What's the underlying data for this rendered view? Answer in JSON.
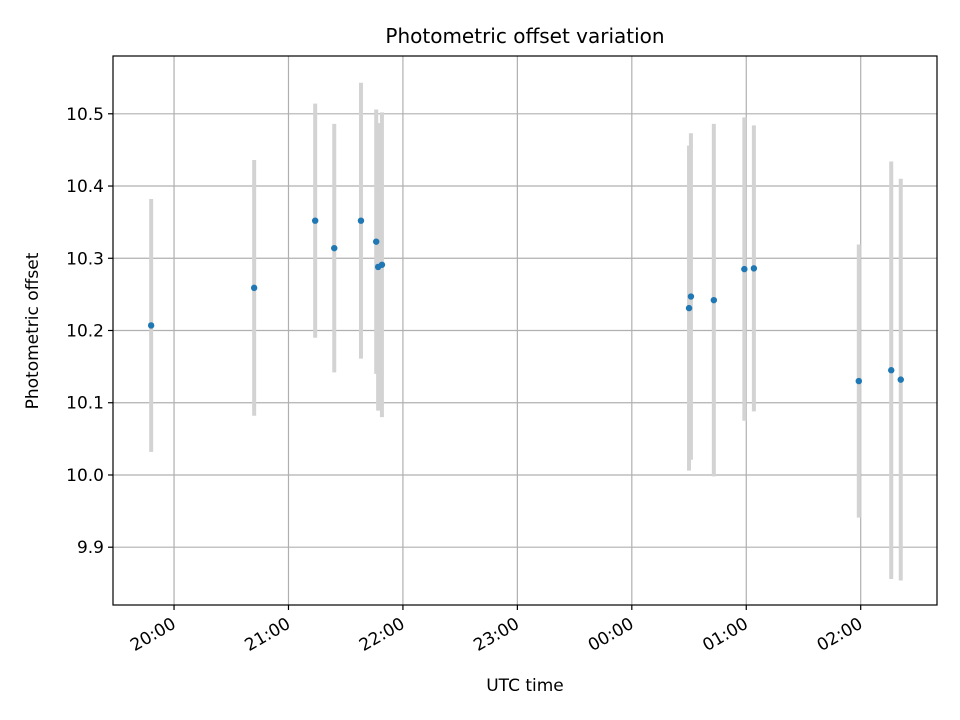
{
  "chart_data": {
    "type": "scatter",
    "title": "Photometric offset variation",
    "xlabel": "UTC time",
    "ylabel": "Photometric offset",
    "x_ticks": [
      "20:00",
      "21:00",
      "22:00",
      "23:00",
      "00:00",
      "01:00",
      "02:00"
    ],
    "y_ticks": [
      "9.9",
      "10.0",
      "10.1",
      "10.2",
      "10.3",
      "10.4",
      "10.5"
    ],
    "xlim": [
      "19:28",
      "02:40"
    ],
    "ylim": [
      9.82,
      10.58
    ],
    "grid": true,
    "marker_color": "#1f77b4",
    "errorbar_color": "#d3d3d3",
    "points": [
      {
        "x": "19:48",
        "y": 10.207,
        "err": 0.175
      },
      {
        "x": "20:42",
        "y": 10.259,
        "err": 0.177
      },
      {
        "x": "21:14",
        "y": 10.352,
        "err": 0.162
      },
      {
        "x": "21:24",
        "y": 10.314,
        "err": 0.172
      },
      {
        "x": "21:38",
        "y": 10.352,
        "err": 0.191
      },
      {
        "x": "21:46",
        "y": 10.323,
        "err": 0.183
      },
      {
        "x": "21:47",
        "y": 10.288,
        "err": 0.199
      },
      {
        "x": "21:49",
        "y": 10.291,
        "err": 0.211
      },
      {
        "x": "00:30",
        "y": 10.231,
        "err": 0.225
      },
      {
        "x": "00:31",
        "y": 10.247,
        "err": 0.226
      },
      {
        "x": "00:43",
        "y": 10.242,
        "err": 0.244
      },
      {
        "x": "00:59",
        "y": 10.285,
        "err": 0.21
      },
      {
        "x": "01:04",
        "y": 10.286,
        "err": 0.198
      },
      {
        "x": "01:59",
        "y": 10.13,
        "err": 0.189
      },
      {
        "x": "02:16",
        "y": 10.145,
        "err": 0.289
      },
      {
        "x": "02:21",
        "y": 10.132,
        "err": 0.278
      }
    ]
  }
}
